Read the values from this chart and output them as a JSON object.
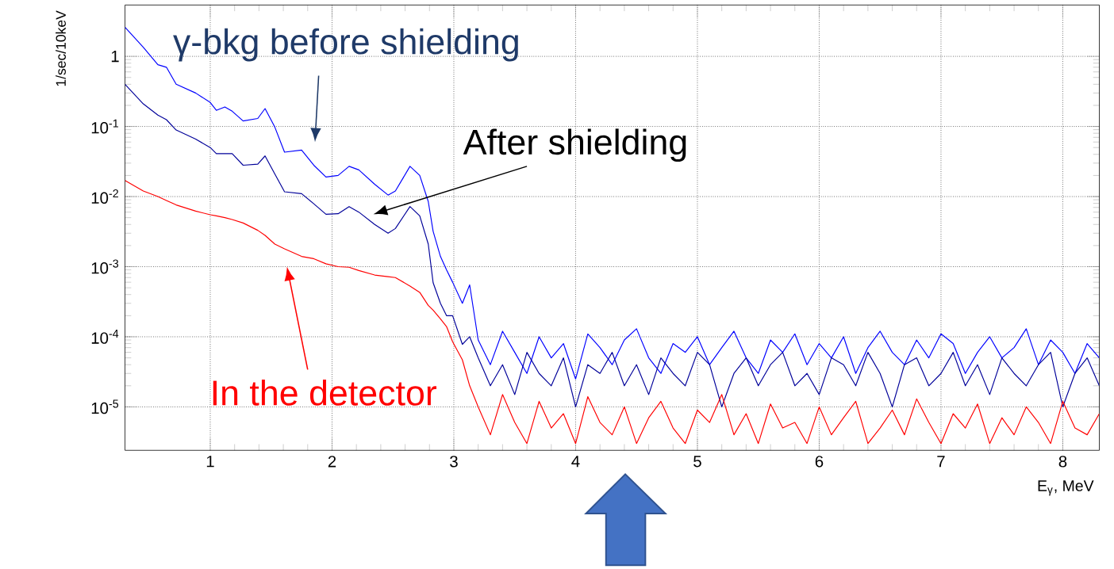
{
  "chart_data": {
    "type": "line",
    "xlabel": "E$_{γ}$, MeV",
    "ylabel": "1/sec/10keV",
    "log": "y",
    "grid": true,
    "xlim": [
      0.3,
      8.3
    ],
    "ylim": [
      2.4e-06,
      5.4
    ],
    "xticks": [
      1,
      2,
      3,
      4,
      5,
      6,
      7,
      8
    ],
    "yticks": [
      {
        "value": 1e-05,
        "label": "10$^{-5}$"
      },
      {
        "value": 0.0001,
        "label": "10$^{-4}$"
      },
      {
        "value": 0.001,
        "label": "10$^{-3}$"
      },
      {
        "value": 0.01,
        "label": "10$^{-2}$"
      },
      {
        "value": 0.1,
        "label": "10$^{-1}$"
      },
      {
        "value": 1,
        "label": "1"
      }
    ],
    "x": [
      0.3,
      0.45,
      0.57,
      0.64,
      0.72,
      0.88,
      1.0,
      1.05,
      1.12,
      1.18,
      1.27,
      1.39,
      1.45,
      1.53,
      1.61,
      1.75,
      1.85,
      1.95,
      2.05,
      2.14,
      2.22,
      2.35,
      2.46,
      2.52,
      2.64,
      2.72,
      2.79,
      2.83,
      2.89,
      2.94,
      2.99,
      3.07,
      3.13,
      3.2,
      3.3,
      3.4,
      3.5,
      3.6,
      3.7,
      3.8,
      3.9,
      4.0,
      4.1,
      4.2,
      4.3,
      4.4,
      4.5,
      4.6,
      4.7,
      4.8,
      4.9,
      5.0,
      5.1,
      5.2,
      5.3,
      5.4,
      5.5,
      5.6,
      5.7,
      5.8,
      5.9,
      6.0,
      6.1,
      6.2,
      6.3,
      6.4,
      6.5,
      6.6,
      6.7,
      6.8,
      6.9,
      7.0,
      7.1,
      7.2,
      7.3,
      7.4,
      7.5,
      7.6,
      7.7,
      7.8,
      7.9,
      8.0,
      8.1,
      8.2,
      8.3
    ],
    "series": [
      {
        "color": "#0000ff",
        "values": [
          2.6,
          1.35,
          0.76,
          0.7,
          0.4,
          0.3,
          0.22,
          0.17,
          0.19,
          0.165,
          0.12,
          0.13,
          0.18,
          0.098,
          0.043,
          0.046,
          0.028,
          0.019,
          0.02,
          0.027,
          0.024,
          0.015,
          0.0105,
          0.012,
          0.027,
          0.02,
          0.0085,
          0.0032,
          0.0014,
          0.0009,
          0.0006,
          0.0003,
          0.00055,
          9e-05,
          4e-05,
          0.00012,
          6e-05,
          3e-05,
          0.0001,
          5e-05,
          8e-05,
          2.5e-05,
          0.00011,
          7e-05,
          4e-05,
          9e-05,
          0.00013,
          5e-05,
          3e-05,
          8e-05,
          6e-05,
          0.0001,
          4e-05,
          7e-05,
          0.00012,
          5e-05,
          3e-05,
          9e-05,
          6e-05,
          0.00011,
          4e-05,
          8e-05,
          5e-05,
          0.0001,
          3e-05,
          7e-05,
          0.00012,
          6e-05,
          4e-05,
          9e-05,
          5e-05,
          0.00011,
          8e-05,
          3e-05,
          6e-05,
          0.0001,
          5e-05,
          7e-05,
          0.00013,
          4e-05,
          9e-05,
          6e-05,
          3e-05,
          8e-05,
          5e-05
        ]
      },
      {
        "color": "#000099",
        "values": [
          0.4,
          0.21,
          0.145,
          0.125,
          0.089,
          0.066,
          0.05,
          0.041,
          0.041,
          0.041,
          0.028,
          0.029,
          0.038,
          0.021,
          0.0117,
          0.011,
          0.0079,
          0.0056,
          0.0057,
          0.0072,
          0.006,
          0.004,
          0.003,
          0.0035,
          0.0072,
          0.0053,
          0.0021,
          0.00059,
          0.0003,
          0.0002,
          0.0002,
          7.8e-05,
          0.0001,
          5e-05,
          2e-05,
          4e-05,
          1.5e-05,
          6e-05,
          3e-05,
          2e-05,
          5e-05,
          1e-05,
          4e-05,
          3e-05,
          6e-05,
          2e-05,
          4e-05,
          1.5e-05,
          5e-05,
          3e-05,
          2e-05,
          6e-05,
          4e-05,
          1e-05,
          3e-05,
          5e-05,
          2e-05,
          4e-05,
          6e-05,
          2e-05,
          3e-05,
          1.5e-05,
          5e-05,
          4e-05,
          2e-05,
          6e-05,
          3e-05,
          1e-05,
          4e-05,
          5e-05,
          2e-05,
          3e-05,
          6e-05,
          2e-05,
          4e-05,
          1.5e-05,
          5e-05,
          3e-05,
          2e-05,
          4e-05,
          6e-05,
          1e-05,
          3e-05,
          5e-05,
          2e-05
        ]
      },
      {
        "color": "#ff0000",
        "values": [
          0.017,
          0.012,
          0.01,
          0.0088,
          0.0076,
          0.0062,
          0.0055,
          0.0053,
          0.005,
          0.0047,
          0.0042,
          0.0033,
          0.0028,
          0.0021,
          0.0018,
          0.0014,
          0.0013,
          0.0011,
          0.001,
          0.00098,
          0.00088,
          0.00076,
          0.00072,
          0.0007,
          0.00053,
          0.00043,
          0.00028,
          0.00024,
          0.00018,
          0.00014,
          8.5e-05,
          4.7e-05,
          2e-05,
          1e-05,
          4e-06,
          1.5e-05,
          6e-06,
          3e-06,
          1.2e-05,
          5e-06,
          8e-06,
          3e-06,
          1.4e-05,
          6e-06,
          4e-06,
          1e-05,
          3e-06,
          7e-06,
          1.2e-05,
          5e-06,
          3e-06,
          9e-06,
          6e-06,
          1.5e-05,
          4e-06,
          8e-06,
          3e-06,
          1.1e-05,
          5e-06,
          6e-06,
          3e-06,
          1e-05,
          4e-06,
          7e-06,
          1.2e-05,
          3e-06,
          5e-06,
          9e-06,
          4e-06,
          1.3e-05,
          6e-06,
          3e-06,
          8e-06,
          5e-06,
          1.1e-05,
          3e-06,
          7e-06,
          4e-06,
          1e-05,
          6e-06,
          3e-06,
          1.2e-05,
          5e-06,
          4e-06,
          8e-06
        ]
      }
    ],
    "annotations": [
      "γ-bkg before shielding",
      "After shielding",
      "In the detector"
    ]
  }
}
